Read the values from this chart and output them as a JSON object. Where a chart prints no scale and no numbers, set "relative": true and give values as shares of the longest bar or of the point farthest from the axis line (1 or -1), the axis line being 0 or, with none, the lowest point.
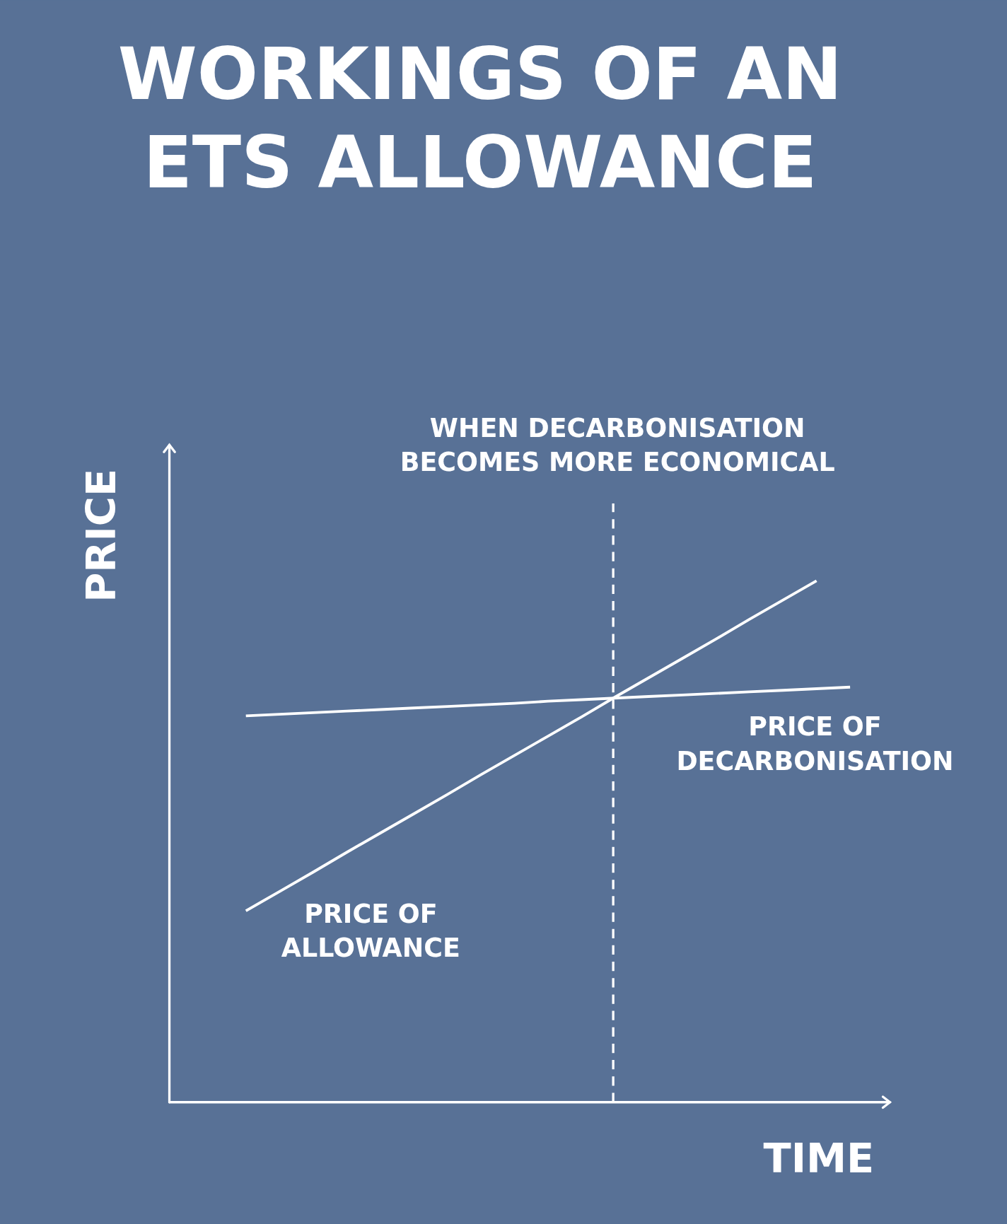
{
  "chart_data": {
    "type": "line",
    "title": "WORKINGS OF AN ETS ALLOWANCE",
    "xlabel": "TIME",
    "ylabel": "PRICE",
    "relative": true,
    "line_style": "solid",
    "categories": [
      null,
      null,
      null,
      null,
      null,
      null,
      null,
      null,
      null,
      null,
      null,
      null,
      null,
      null,
      null,
      null,
      null,
      null,
      null
    ],
    "series": [
      {
        "name": "PRICE OF ALLOWANCE",
        "color": "#ffffff",
        "values": [
          0.367,
          0.404,
          0.441,
          0.479,
          0.516,
          0.553,
          0.59,
          0.628,
          0.665,
          0.702,
          0.739,
          0.777,
          0.814,
          0.851,
          0.888,
          0.926,
          0.963,
          1.0,
          null
        ]
      },
      {
        "name": "PRICE OF DECARBONISATION",
        "color": "#ffffff",
        "values": [
          0.741,
          0.744,
          0.747,
          0.75,
          0.753,
          0.756,
          0.759,
          0.762,
          0.765,
          0.769,
          0.772,
          0.775,
          0.778,
          0.781,
          0.784,
          0.787,
          0.79,
          0.793,
          0.796
        ]
      }
    ],
    "annotations": [
      "WHEN DECARBONISATION BECOMES MORE ECONOMICAL"
    ]
  }
}
